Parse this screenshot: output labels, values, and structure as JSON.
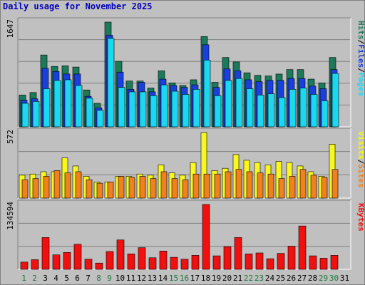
{
  "title": "Daily usage for November 2025",
  "colors": {
    "hits": "#1a7a5a",
    "files": "#1a3fdf",
    "pages": "#1ad8f0",
    "visits": "#f8f820",
    "sites": "#f08020",
    "kbytes": "#f01010",
    "weekend_label": "#1a7a3a",
    "weekday_label": "#000000"
  },
  "chart_data": [
    {
      "type": "bar",
      "panel": "requests",
      "categories": [
        "1",
        "2",
        "3",
        "4",
        "5",
        "6",
        "7",
        "8",
        "9",
        "10",
        "11",
        "12",
        "13",
        "14",
        "15",
        "16",
        "17",
        "18",
        "19",
        "20",
        "21",
        "22",
        "23",
        "24",
        "25",
        "26",
        "27",
        "28",
        "29",
        "30",
        "31"
      ],
      "y_max_label": "1647",
      "ylim": [
        0,
        1647
      ],
      "series": [
        {
          "name": "Hits",
          "values": [
            500,
            540,
            1130,
            950,
            960,
            940,
            580,
            370,
            1647,
            1030,
            720,
            720,
            610,
            880,
            690,
            650,
            740,
            1420,
            700,
            1090,
            1020,
            850,
            810,
            800,
            830,
            900,
            900,
            750,
            690,
            1090,
            0
          ]
        },
        {
          "name": "Files",
          "values": [
            420,
            440,
            920,
            870,
            830,
            830,
            480,
            300,
            1440,
            860,
            590,
            700,
            550,
            750,
            650,
            620,
            660,
            1290,
            620,
            910,
            880,
            740,
            710,
            730,
            730,
            760,
            760,
            640,
            600,
            900,
            0
          ]
        },
        {
          "name": "Pages",
          "values": [
            370,
            400,
            600,
            730,
            740,
            650,
            450,
            260,
            1390,
            620,
            550,
            550,
            490,
            660,
            560,
            510,
            590,
            1050,
            490,
            730,
            760,
            600,
            500,
            520,
            460,
            590,
            610,
            510,
            410,
            840,
            0
          ]
        }
      ],
      "side_labels": [
        "Pages",
        "/",
        "Files",
        "/",
        "Hits"
      ]
    },
    {
      "type": "bar",
      "panel": "visits",
      "categories": [
        "1",
        "2",
        "3",
        "4",
        "5",
        "6",
        "7",
        "8",
        "9",
        "10",
        "11",
        "12",
        "13",
        "14",
        "15",
        "16",
        "17",
        "18",
        "19",
        "20",
        "21",
        "22",
        "23",
        "24",
        "25",
        "26",
        "27",
        "28",
        "29",
        "30",
        "31"
      ],
      "y_max_label": "572",
      "ylim": [
        0,
        572
      ],
      "series": [
        {
          "name": "Visits",
          "values": [
            200,
            210,
            230,
            230,
            350,
            280,
            190,
            140,
            140,
            190,
            190,
            210,
            200,
            290,
            220,
            200,
            310,
            572,
            240,
            260,
            380,
            330,
            310,
            290,
            320,
            310,
            280,
            230,
            190,
            470,
            0
          ]
        },
        {
          "name": "Sites",
          "values": [
            160,
            170,
            190,
            240,
            220,
            230,
            160,
            130,
            140,
            190,
            180,
            190,
            170,
            230,
            170,
            160,
            210,
            210,
            210,
            230,
            250,
            230,
            220,
            210,
            170,
            190,
            250,
            200,
            180,
            250,
            0
          ]
        }
      ],
      "side_labels": [
        "Sites",
        "/",
        "Visits"
      ]
    },
    {
      "type": "bar",
      "panel": "kbytes",
      "categories": [
        "1",
        "2",
        "3",
        "4",
        "5",
        "6",
        "7",
        "8",
        "9",
        "10",
        "11",
        "12",
        "13",
        "14",
        "15",
        "16",
        "17",
        "18",
        "19",
        "20",
        "21",
        "22",
        "23",
        "24",
        "25",
        "26",
        "27",
        "28",
        "29",
        "30",
        "31"
      ],
      "y_max_label": "134594",
      "ylim": [
        0,
        134594
      ],
      "series": [
        {
          "name": "KBytes",
          "values": [
            15000,
            20000,
            66000,
            30000,
            35000,
            52000,
            21000,
            13000,
            37000,
            61000,
            32000,
            45000,
            24000,
            38000,
            25000,
            21000,
            29000,
            134594,
            28000,
            47000,
            66000,
            32000,
            34000,
            22000,
            33000,
            48000,
            90000,
            28000,
            23000,
            29000,
            0
          ]
        }
      ],
      "side_labels": [
        "KBytes"
      ]
    }
  ],
  "x_labels": [
    "1",
    "2",
    "3",
    "4",
    "5",
    "6",
    "7",
    "8",
    "9",
    "10",
    "11",
    "12",
    "13",
    "14",
    "15",
    "16",
    "17",
    "18",
    "19",
    "20",
    "21",
    "22",
    "23",
    "24",
    "25",
    "26",
    "27",
    "28",
    "29",
    "30",
    "31"
  ],
  "weekend_days": [
    1,
    2,
    8,
    9,
    15,
    16,
    22,
    23,
    29,
    30
  ]
}
